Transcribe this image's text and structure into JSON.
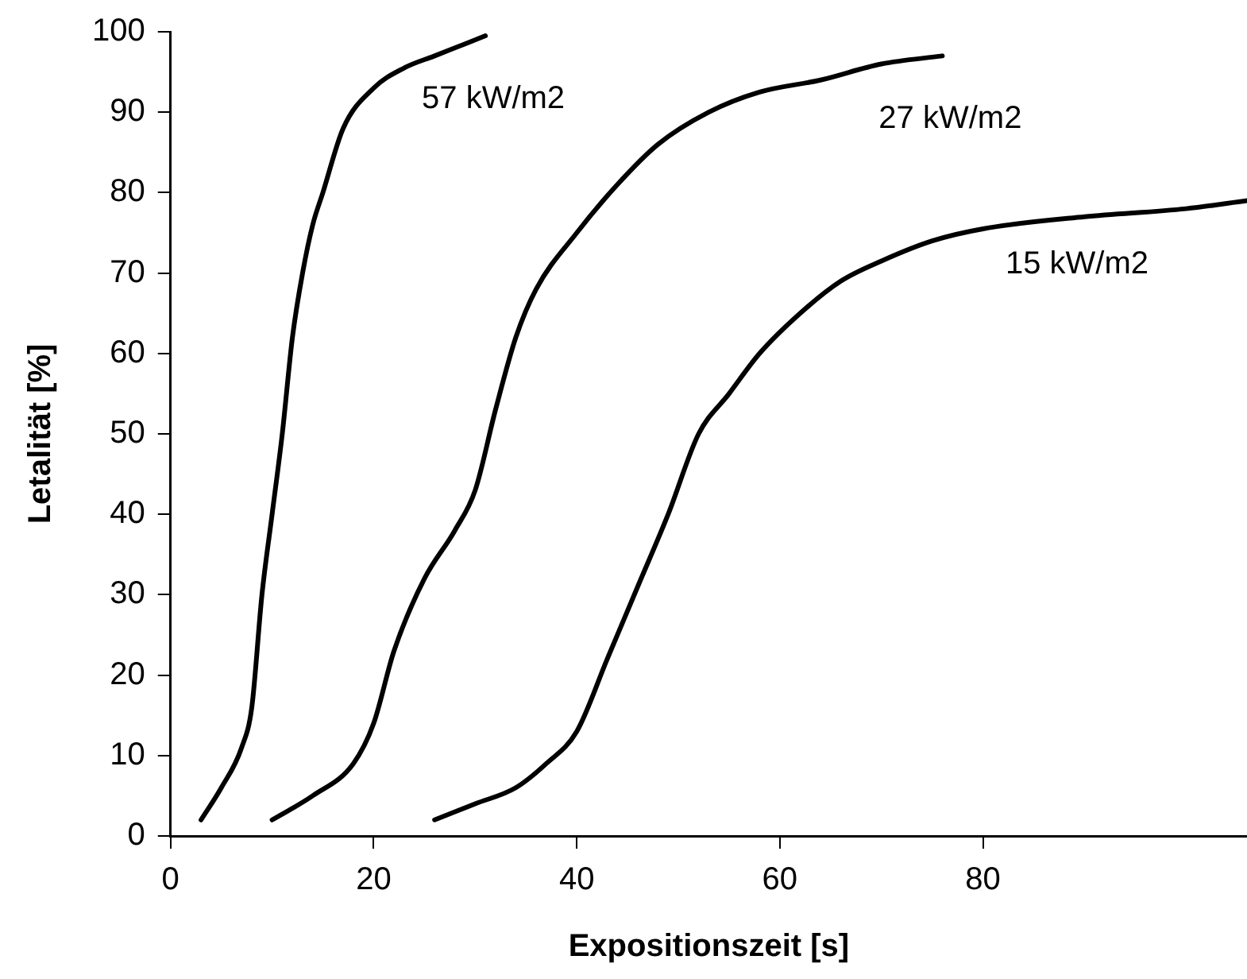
{
  "chart_data": {
    "type": "line",
    "xlabel": "Expositionszeit [s]",
    "ylabel": "Letalität [%]",
    "xlim": [
      0,
      106
    ],
    "xticks": [
      0,
      20,
      40,
      60,
      80
    ],
    "ylim": [
      0,
      100
    ],
    "yticks": [
      0,
      10,
      20,
      30,
      40,
      50,
      60,
      70,
      80,
      90,
      100
    ],
    "grid": false,
    "legend": false,
    "marker": "none",
    "line_style": "solid",
    "series": [
      {
        "name": "57 kW/m2",
        "color": "#000000",
        "x": [
          3,
          5,
          7,
          8,
          9,
          10,
          11,
          12,
          13,
          14,
          15,
          17,
          20,
          23,
          26,
          29,
          31
        ],
        "values": [
          2,
          6,
          11,
          16,
          30,
          40,
          50,
          62,
          70,
          76,
          80,
          88,
          93,
          95.5,
          97,
          98.5,
          99.5
        ]
      },
      {
        "name": "27 kW/m2",
        "color": "#000000",
        "x": [
          10,
          14,
          18,
          20,
          22,
          25,
          28,
          30,
          32,
          34,
          36,
          40,
          44,
          48,
          53,
          58,
          64,
          70,
          76
        ],
        "values": [
          2,
          5,
          9,
          14,
          23,
          32,
          38,
          43,
          53,
          62,
          68,
          75,
          81,
          86,
          90,
          92.5,
          94,
          96,
          97
        ]
      },
      {
        "name": "15 kW/m2",
        "color": "#000000",
        "x": [
          26,
          30,
          34,
          37,
          40,
          43,
          46,
          49,
          52,
          55,
          58,
          62,
          66,
          70,
          75,
          80,
          90,
          100,
          106
        ],
        "values": [
          2,
          4,
          6,
          9,
          13,
          22,
          31,
          40,
          50,
          55,
          60,
          65,
          69,
          71.5,
          74,
          75.5,
          77,
          78,
          79
        ]
      }
    ]
  }
}
